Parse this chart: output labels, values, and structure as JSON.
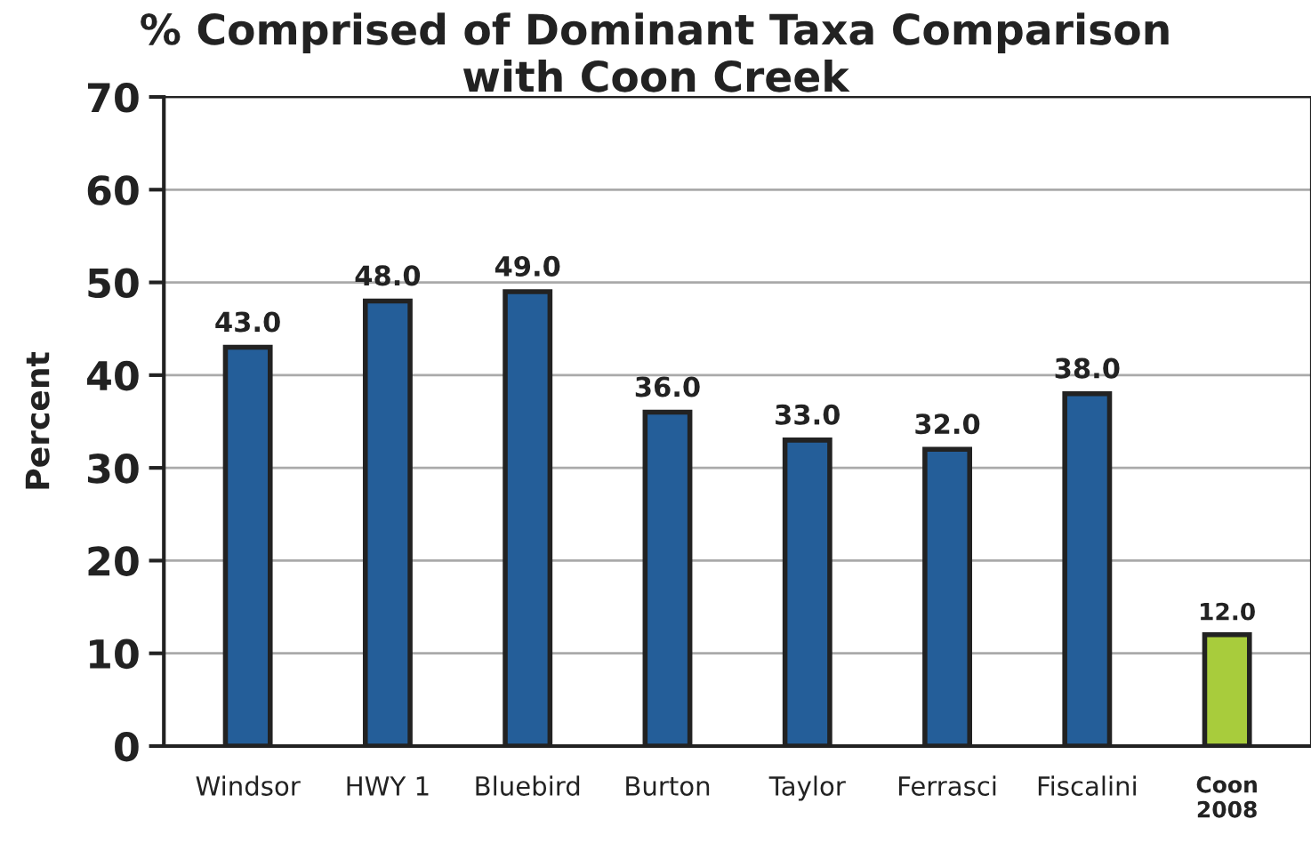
{
  "chart_data": {
    "type": "bar",
    "title": "% Comprised of Dominant Taxa Comparison\nwith Coon Creek",
    "ylabel": "Percent",
    "categories": [
      "Windsor",
      "HWY 1",
      "Bluebird",
      "Burton",
      "Taylor",
      "Ferrasci",
      "Fiscalini",
      "Coon\n2008"
    ],
    "values": [
      43.0,
      48.0,
      49.0,
      36.0,
      33.0,
      32.0,
      38.0,
      12.0
    ],
    "colors": [
      "#245e99",
      "#245e99",
      "#245e99",
      "#245e99",
      "#245e99",
      "#245e99",
      "#245e99",
      "#a8cc3c"
    ],
    "value_labels": [
      "43.0",
      "48.0",
      "49.0",
      "36.0",
      "33.0",
      "32.0",
      "38.0",
      "12.0"
    ],
    "ylim": [
      0,
      70
    ],
    "yticks": [
      0,
      10,
      20,
      30,
      40,
      50,
      60,
      70
    ],
    "grid": "y",
    "legend": false
  }
}
